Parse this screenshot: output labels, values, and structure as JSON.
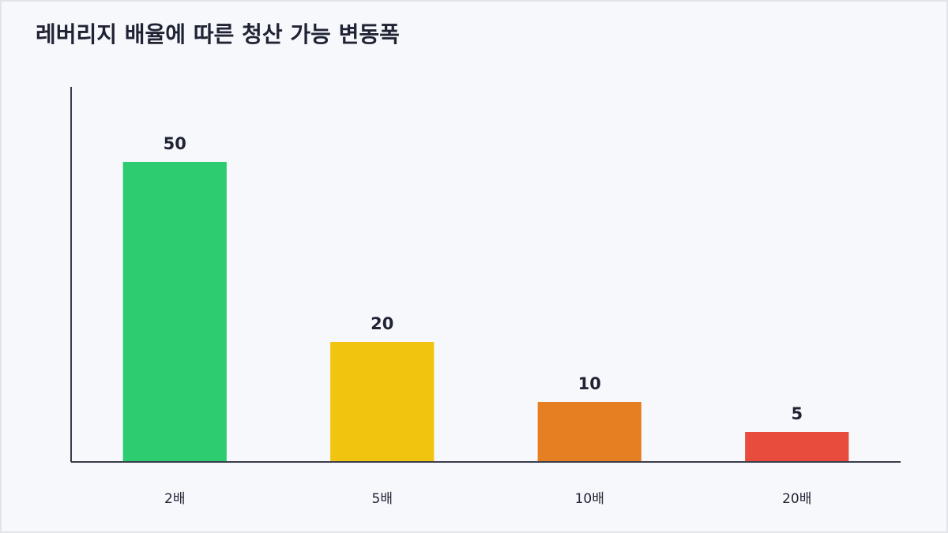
{
  "chart_data": {
    "type": "bar",
    "title": "레버리지 배율에 따른 청산 가능 변동폭",
    "categories": [
      "2배",
      "5배",
      "10배",
      "20배"
    ],
    "values": [
      50,
      20,
      10,
      5
    ],
    "colors": [
      "#2ecc71",
      "#f1c40f",
      "#e67e22",
      "#e74c3c"
    ],
    "ylim": [
      0,
      62.5
    ]
  }
}
